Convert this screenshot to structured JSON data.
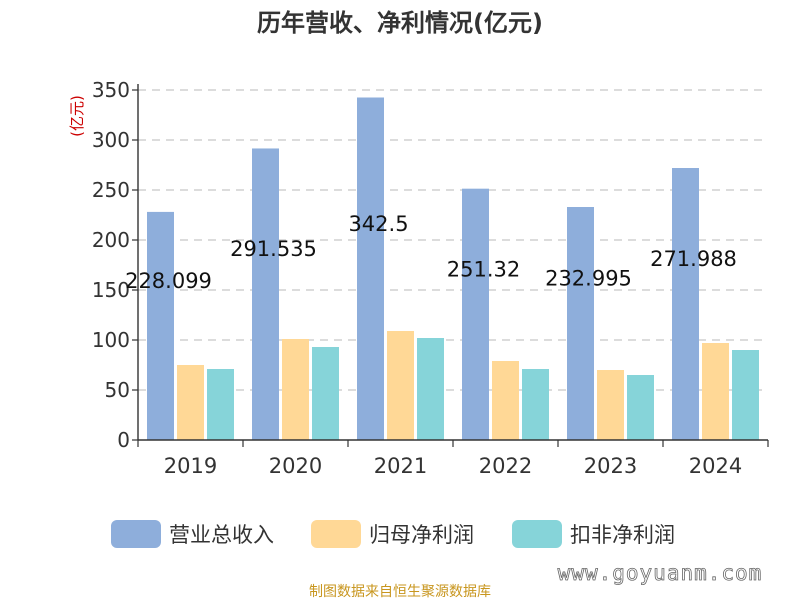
{
  "chart_data": {
    "type": "bar",
    "title": "历年营收、净利情况(亿元)",
    "ylabel": "(亿元)",
    "xlabel": "",
    "categories": [
      "2019",
      "2020",
      "2021",
      "2022",
      "2023",
      "2024"
    ],
    "ylim": [
      0,
      350
    ],
    "yticks": [
      "0",
      "50",
      "100",
      "150",
      "200",
      "250",
      "300",
      "350"
    ],
    "ytick_values": [
      0,
      50,
      100,
      150,
      200,
      250,
      300,
      350
    ],
    "grid": true,
    "legend_position": "bottom",
    "series": [
      {
        "name": "营业总收入",
        "color": "#8eaedb",
        "values": [
          228.099,
          291.535,
          342.5,
          251.32,
          232.995,
          271.988
        ]
      },
      {
        "name": "归母净利润",
        "color": "#ffd896",
        "values": [
          75,
          101,
          109,
          79,
          70,
          97
        ]
      },
      {
        "name": "扣非净利润",
        "color": "#86d4d9",
        "values": [
          71,
          93,
          102,
          71,
          65,
          90
        ]
      }
    ],
    "data_labels": [
      "228.099",
      "291.535",
      "342.5",
      "251.32",
      "232.995",
      "271.988"
    ]
  },
  "footer": {
    "source": "制图数据来自恒生聚源数据库",
    "watermark": "www.goyuanm.com"
  }
}
